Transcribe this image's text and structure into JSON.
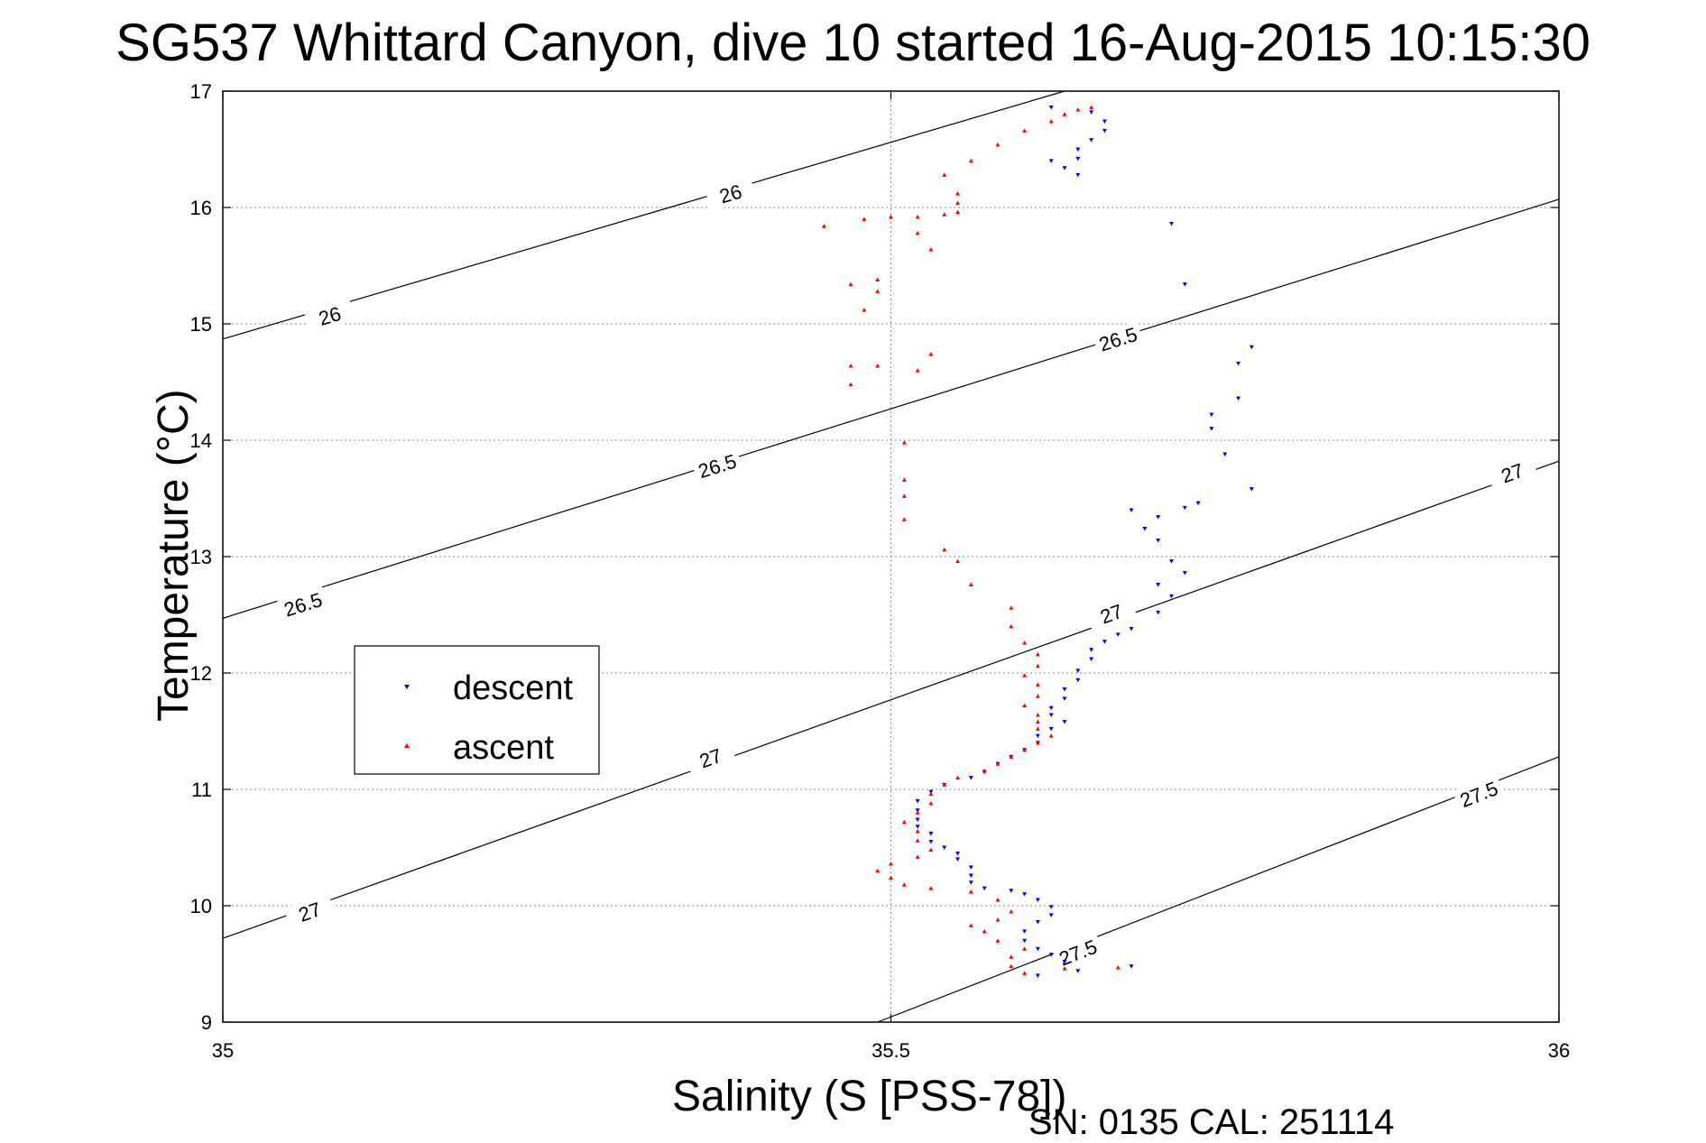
{
  "chart_data": {
    "type": "scatter",
    "title": "SG537 Whittard Canyon, dive 10 started 16-Aug-2015 10:15:30",
    "xlabel": "Salinity (S [PSS-78])",
    "ylabel": "Temperature (°C)",
    "footnote": "SN: 0135  CAL: 251114",
    "xlim": [
      35,
      36
    ],
    "ylim": [
      9,
      17
    ],
    "x_ticks": [
      "35",
      "35.5",
      "36"
    ],
    "y_ticks": [
      "9",
      "10",
      "11",
      "12",
      "13",
      "14",
      "15",
      "16",
      "17"
    ],
    "grid": true,
    "legend": {
      "position": "middle-left",
      "entries": [
        {
          "name": "descent",
          "color": "#0000ff"
        },
        {
          "name": "ascent",
          "color": "#ff0000"
        }
      ]
    },
    "contours": [
      {
        "label": "26",
        "label_positions": [
          [
            35.08,
            15.07
          ],
          [
            35.38,
            16.12
          ]
        ],
        "points": [
          [
            35.0,
            14.87
          ],
          [
            35.63,
            17.0
          ]
        ]
      },
      {
        "label": "26.5",
        "label_positions": [
          [
            35.06,
            12.59
          ],
          [
            35.37,
            13.78
          ],
          [
            35.67,
            14.87
          ]
        ],
        "points": [
          [
            35.0,
            12.47
          ],
          [
            36.0,
            16.07
          ]
        ]
      },
      {
        "label": "27",
        "label_positions": [
          [
            35.065,
            9.95
          ],
          [
            35.365,
            11.27
          ],
          [
            35.665,
            12.51
          ],
          [
            35.965,
            13.72
          ]
        ],
        "points": [
          [
            35.0,
            9.72
          ],
          [
            36.0,
            13.82
          ]
        ]
      },
      {
        "label": "27.5",
        "label_positions": [
          [
            35.64,
            9.6
          ],
          [
            35.94,
            10.96
          ]
        ],
        "points": [
          [
            35.49,
            9.0
          ],
          [
            36.0,
            11.28
          ]
        ]
      }
    ],
    "series": [
      {
        "name": "descent",
        "color": "#0000ff",
        "marker": "triangle-down",
        "points": [
          [
            35.61,
            9.4
          ],
          [
            35.64,
            9.44
          ],
          [
            35.68,
            9.48
          ],
          [
            35.63,
            9.52
          ],
          [
            35.62,
            9.58
          ],
          [
            35.61,
            9.63
          ],
          [
            35.6,
            9.7
          ],
          [
            35.6,
            9.78
          ],
          [
            35.61,
            9.86
          ],
          [
            35.62,
            9.92
          ],
          [
            35.62,
            9.99
          ],
          [
            35.61,
            10.05
          ],
          [
            35.6,
            10.1
          ],
          [
            35.59,
            10.13
          ],
          [
            35.57,
            10.15
          ],
          [
            35.56,
            10.2
          ],
          [
            35.56,
            10.26
          ],
          [
            35.56,
            10.33
          ],
          [
            35.55,
            10.4
          ],
          [
            35.55,
            10.45
          ],
          [
            35.54,
            10.5
          ],
          [
            35.53,
            10.55
          ],
          [
            35.53,
            10.62
          ],
          [
            35.52,
            10.68
          ],
          [
            35.52,
            10.74
          ],
          [
            35.52,
            10.82
          ],
          [
            35.52,
            10.9
          ],
          [
            35.53,
            10.98
          ],
          [
            35.54,
            11.04
          ],
          [
            35.56,
            11.1
          ],
          [
            35.57,
            11.15
          ],
          [
            35.58,
            11.22
          ],
          [
            35.59,
            11.28
          ],
          [
            35.6,
            11.34
          ],
          [
            35.61,
            11.4
          ],
          [
            35.61,
            11.46
          ],
          [
            35.62,
            11.52
          ],
          [
            35.63,
            11.58
          ],
          [
            35.62,
            11.64
          ],
          [
            35.62,
            11.7
          ],
          [
            35.63,
            11.78
          ],
          [
            35.63,
            11.86
          ],
          [
            35.64,
            11.94
          ],
          [
            35.64,
            12.02
          ],
          [
            35.65,
            12.12
          ],
          [
            35.65,
            12.2
          ],
          [
            35.66,
            12.27
          ],
          [
            35.67,
            12.33
          ],
          [
            35.68,
            12.38
          ],
          [
            35.7,
            12.52
          ],
          [
            35.71,
            12.66
          ],
          [
            35.7,
            12.76
          ],
          [
            35.72,
            12.86
          ],
          [
            35.71,
            12.96
          ],
          [
            35.7,
            13.14
          ],
          [
            35.69,
            13.24
          ],
          [
            35.7,
            13.34
          ],
          [
            35.68,
            13.4
          ],
          [
            35.73,
            13.46
          ],
          [
            35.72,
            13.42
          ],
          [
            35.75,
            13.88
          ],
          [
            35.77,
            13.58
          ],
          [
            35.74,
            14.1
          ],
          [
            35.74,
            14.22
          ],
          [
            35.76,
            14.36
          ],
          [
            35.76,
            14.66
          ],
          [
            35.77,
            14.8
          ],
          [
            35.72,
            15.34
          ],
          [
            35.71,
            15.86
          ],
          [
            35.63,
            16.34
          ],
          [
            35.64,
            16.42
          ],
          [
            35.64,
            16.5
          ],
          [
            35.65,
            16.58
          ],
          [
            35.66,
            16.66
          ],
          [
            35.66,
            16.74
          ],
          [
            35.65,
            16.82
          ],
          [
            35.62,
            16.86
          ],
          [
            35.64,
            16.28
          ],
          [
            35.62,
            16.4
          ]
        ]
      },
      {
        "name": "ascent",
        "color": "#ff0000",
        "marker": "triangle-up",
        "points": [
          [
            35.67,
            9.47
          ],
          [
            35.63,
            9.46
          ],
          [
            35.6,
            9.42
          ],
          [
            35.59,
            9.48
          ],
          [
            35.59,
            9.56
          ],
          [
            35.6,
            9.63
          ],
          [
            35.58,
            9.7
          ],
          [
            35.57,
            9.78
          ],
          [
            35.56,
            9.83
          ],
          [
            35.58,
            9.88
          ],
          [
            35.59,
            9.95
          ],
          [
            35.58,
            10.05
          ],
          [
            35.56,
            10.12
          ],
          [
            35.53,
            10.15
          ],
          [
            35.51,
            10.18
          ],
          [
            35.5,
            10.24
          ],
          [
            35.49,
            10.3
          ],
          [
            35.5,
            10.36
          ],
          [
            35.52,
            10.42
          ],
          [
            35.53,
            10.48
          ],
          [
            35.52,
            10.56
          ],
          [
            35.52,
            10.64
          ],
          [
            35.51,
            10.72
          ],
          [
            35.52,
            10.8
          ],
          [
            35.53,
            10.88
          ],
          [
            35.53,
            10.96
          ],
          [
            35.54,
            11.04
          ],
          [
            35.55,
            11.1
          ],
          [
            35.57,
            11.16
          ],
          [
            35.58,
            11.22
          ],
          [
            35.59,
            11.28
          ],
          [
            35.6,
            11.34
          ],
          [
            35.61,
            11.4
          ],
          [
            35.62,
            11.46
          ],
          [
            35.61,
            11.52
          ],
          [
            35.61,
            11.58
          ],
          [
            35.61,
            11.64
          ],
          [
            35.6,
            11.72
          ],
          [
            35.61,
            11.8
          ],
          [
            35.61,
            11.9
          ],
          [
            35.6,
            11.98
          ],
          [
            35.61,
            12.06
          ],
          [
            35.61,
            12.16
          ],
          [
            35.6,
            12.26
          ],
          [
            35.59,
            12.4
          ],
          [
            35.59,
            12.56
          ],
          [
            35.56,
            12.76
          ],
          [
            35.55,
            12.96
          ],
          [
            35.54,
            13.06
          ],
          [
            35.51,
            13.32
          ],
          [
            35.51,
            13.52
          ],
          [
            35.51,
            13.66
          ],
          [
            35.51,
            13.98
          ],
          [
            35.52,
            14.6
          ],
          [
            35.53,
            14.74
          ],
          [
            35.47,
            14.48
          ],
          [
            35.47,
            14.64
          ],
          [
            35.49,
            14.64
          ],
          [
            35.48,
            15.12
          ],
          [
            35.49,
            15.28
          ],
          [
            35.49,
            15.38
          ],
          [
            35.47,
            15.34
          ],
          [
            35.45,
            15.84
          ],
          [
            35.48,
            15.9
          ],
          [
            35.5,
            15.92
          ],
          [
            35.52,
            15.92
          ],
          [
            35.54,
            15.94
          ],
          [
            35.55,
            15.96
          ],
          [
            35.55,
            16.04
          ],
          [
            35.55,
            16.12
          ],
          [
            35.54,
            16.28
          ],
          [
            35.56,
            16.4
          ],
          [
            35.58,
            16.54
          ],
          [
            35.6,
            16.66
          ],
          [
            35.62,
            16.74
          ],
          [
            35.63,
            16.8
          ],
          [
            35.64,
            16.84
          ],
          [
            35.65,
            16.86
          ],
          [
            35.52,
            15.78
          ],
          [
            35.53,
            15.64
          ]
        ]
      }
    ]
  }
}
